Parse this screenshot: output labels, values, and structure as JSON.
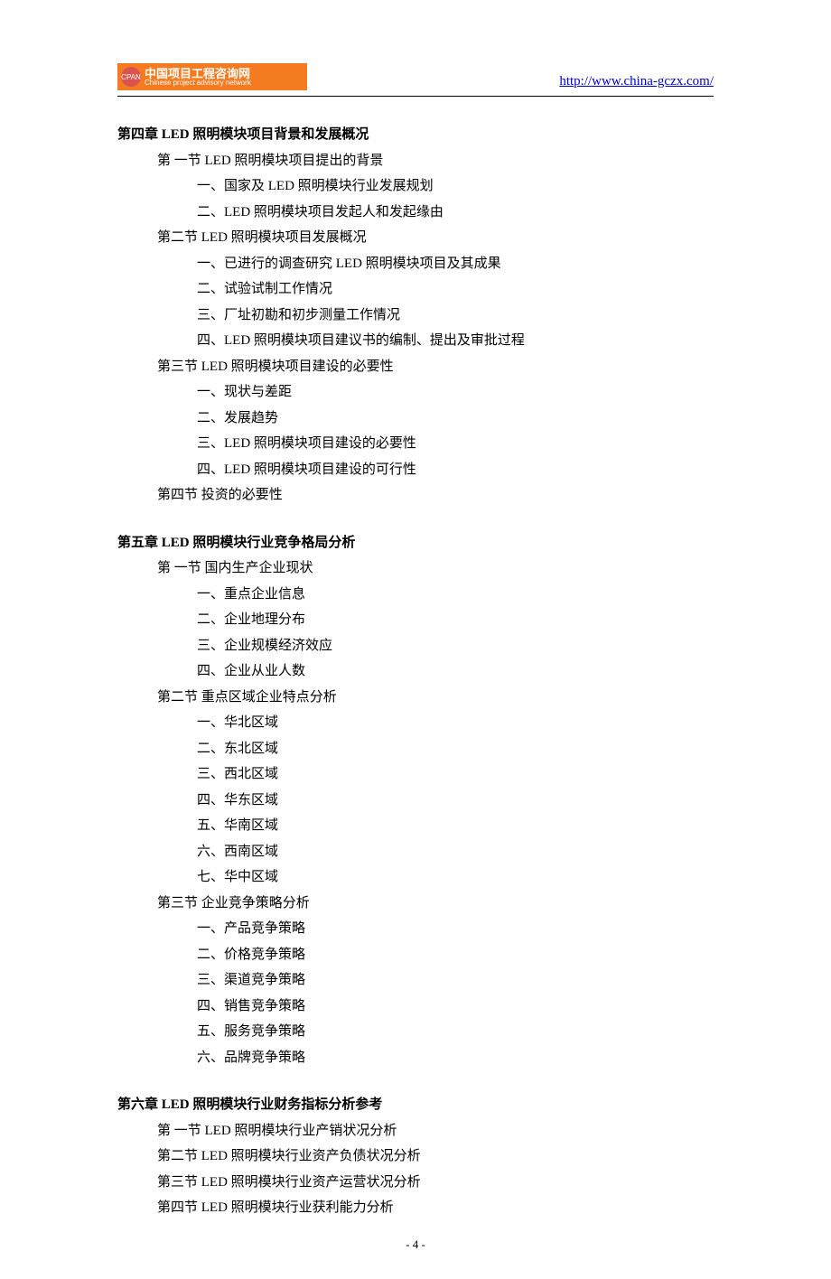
{
  "header": {
    "logo_cn": "中国项目工程咨询网",
    "logo_en": "Chinese project advisory network",
    "logo_mark": "CPAN",
    "url": "http://www.china-gczx.com/"
  },
  "colors": {
    "logo_bg": "#f47b20",
    "logo_circle": "#d9534f",
    "logo_text": "#ffffff",
    "link": "#0000cc",
    "text": "#000000"
  },
  "typography": {
    "body_font": "SimSun",
    "body_size_pt": 11,
    "line_height": 1.9
  },
  "chapters": [
    {
      "title": "第四章 LED 照明模块项目背景和发展概况",
      "sections": [
        {
          "title": "第 一节 LED 照明模块项目提出的背景",
          "items": [
            "一、国家及 LED 照明模块行业发展规划",
            "二、LED 照明模块项目发起人和发起缘由"
          ]
        },
        {
          "title": "第二节 LED 照明模块项目发展概况",
          "items": [
            "一、已进行的调查研究 LED 照明模块项目及其成果",
            "二、试验试制工作情况",
            "三、厂址初勘和初步测量工作情况",
            "四、LED 照明模块项目建议书的编制、提出及审批过程"
          ]
        },
        {
          "title": "第三节 LED 照明模块项目建设的必要性",
          "items": [
            "一、现状与差距",
            "二、发展趋势",
            "三、LED 照明模块项目建设的必要性",
            "四、LED 照明模块项目建设的可行性"
          ]
        },
        {
          "title": "第四节  投资的必要性",
          "items": []
        }
      ]
    },
    {
      "title": "第五章 LED 照明模块行业竞争格局分析",
      "sections": [
        {
          "title": "第 一节  国内生产企业现状",
          "items": [
            "一、重点企业信息",
            "二、企业地理分布",
            "三、企业规模经济效应",
            "四、企业从业人数"
          ]
        },
        {
          "title": "第二节  重点区域企业特点分析",
          "items": [
            "一、华北区域",
            "二、东北区域",
            "三、西北区域",
            "四、华东区域",
            "五、华南区域",
            "六、西南区域",
            "七、华中区域"
          ]
        },
        {
          "title": "第三节  企业竞争策略分析",
          "items": [
            "一、产品竞争策略",
            "二、价格竞争策略",
            "三、渠道竞争策略",
            "四、销售竞争策略",
            "五、服务竞争策略",
            "六、品牌竞争策略"
          ]
        }
      ]
    },
    {
      "title": "第六章 LED 照明模块行业财务指标分析参考",
      "sections": [
        {
          "title": "第 一节 LED 照明模块行业产销状况分析",
          "items": []
        },
        {
          "title": "第二节 LED 照明模块行业资产负债状况分析",
          "items": []
        },
        {
          "title": "第三节 LED 照明模块行业资产运营状况分析",
          "items": []
        },
        {
          "title": "第四节 LED 照明模块行业获利能力分析",
          "items": []
        }
      ]
    }
  ],
  "page_number": "- 4 -"
}
